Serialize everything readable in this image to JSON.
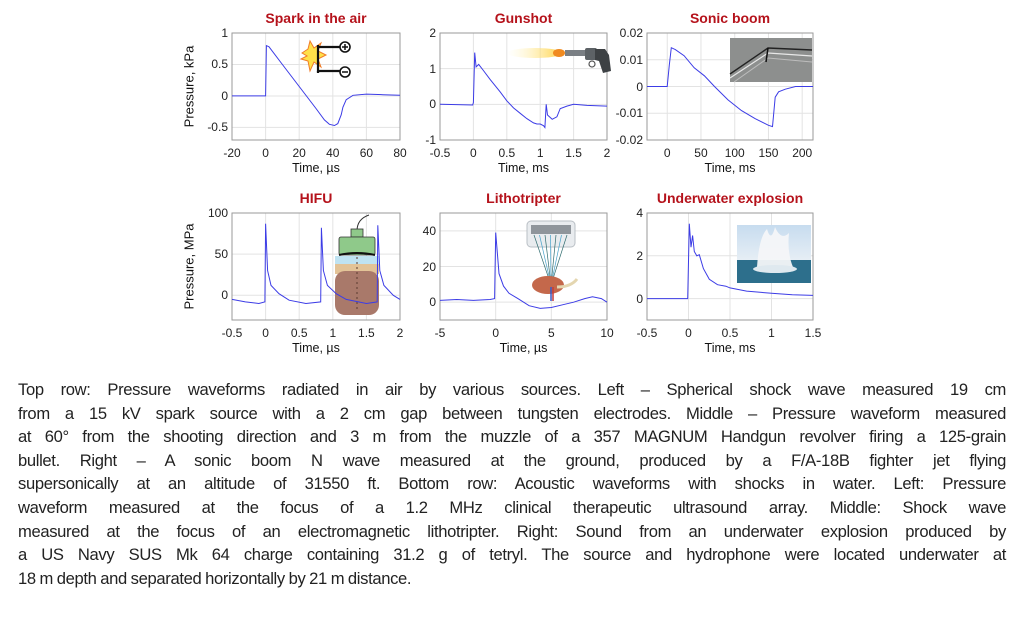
{
  "colors": {
    "title": "#b5121b",
    "trace": "#3c3ce6",
    "grid": "#e3e3e3",
    "axis": "#9a9a9a"
  },
  "chart_data": [
    {
      "type": "line",
      "title": "Spark in the air",
      "xlabel": "Time, µs",
      "ylabel": "Pressure, kPa",
      "xlim": [
        -20,
        80
      ],
      "ylim": [
        -0.7,
        1
      ],
      "xticks": [
        -20,
        0,
        20,
        40,
        60,
        80
      ],
      "yticks": [
        -0.5,
        0,
        0.5,
        1
      ],
      "xticklabels": [
        "-20",
        "0",
        "20",
        "40",
        "60",
        "80"
      ],
      "yticklabels": [
        "-0.5",
        "0",
        "0.5",
        "1"
      ],
      "grid": true,
      "inset": "spark-electrodes-icon",
      "series": [
        {
          "name": "pressure",
          "points": [
            [
              -20,
              0
            ],
            [
              0,
              0
            ],
            [
              0.5,
              0.8
            ],
            [
              2,
              0.78
            ],
            [
              10,
              0.5
            ],
            [
              20,
              0.15
            ],
            [
              30,
              -0.2
            ],
            [
              35,
              -0.38
            ],
            [
              38,
              -0.45
            ],
            [
              41,
              -0.47
            ],
            [
              43,
              -0.44
            ],
            [
              45,
              -0.3
            ],
            [
              46,
              -0.18
            ],
            [
              48,
              -0.06
            ],
            [
              52,
              0.01
            ],
            [
              60,
              0.03
            ],
            [
              70,
              0.02
            ],
            [
              80,
              0.01
            ]
          ]
        }
      ]
    },
    {
      "type": "line",
      "title": "Gunshot",
      "xlabel": "Time, ms",
      "ylabel": "",
      "xlim": [
        -0.5,
        2
      ],
      "ylim": [
        -1,
        2
      ],
      "xticks": [
        -0.5,
        0,
        0.5,
        1,
        1.5,
        2
      ],
      "yticks": [
        -1,
        0,
        1,
        2
      ],
      "xticklabels": [
        "-0.5",
        "0",
        "0.5",
        "1",
        "1.5",
        "2"
      ],
      "yticklabels": [
        "-1",
        "0",
        "1",
        "2"
      ],
      "grid": true,
      "inset": "revolver-icon",
      "series": [
        {
          "name": "pressure",
          "points": [
            [
              -0.5,
              0
            ],
            [
              -0.01,
              -0.02
            ],
            [
              0,
              0.05
            ],
            [
              0.02,
              1.45
            ],
            [
              0.04,
              1.05
            ],
            [
              0.08,
              1.12
            ],
            [
              0.15,
              0.95
            ],
            [
              0.25,
              0.7
            ],
            [
              0.4,
              0.35
            ],
            [
              0.5,
              0.1
            ],
            [
              0.6,
              -0.1
            ],
            [
              0.7,
              -0.25
            ],
            [
              0.8,
              -0.4
            ],
            [
              0.9,
              -0.52
            ],
            [
              0.95,
              -0.55
            ],
            [
              1.0,
              -0.55
            ],
            [
              1.05,
              -0.6
            ],
            [
              1.07,
              -0.65
            ],
            [
              1.09,
              0.0
            ],
            [
              1.11,
              -0.3
            ],
            [
              1.18,
              -0.42
            ],
            [
              1.25,
              -0.35
            ],
            [
              1.3,
              -0.12
            ],
            [
              1.4,
              -0.05
            ],
            [
              1.5,
              0.0
            ],
            [
              1.7,
              -0.03
            ],
            [
              2,
              -0.05
            ]
          ]
        }
      ]
    },
    {
      "type": "line",
      "title": "Sonic boom",
      "xlabel": "Time, ms",
      "ylabel": "",
      "xlim": [
        -30,
        216
      ],
      "ylim": [
        -0.02,
        0.02
      ],
      "xticks": [
        0,
        50,
        100,
        150,
        200
      ],
      "yticks": [
        -0.02,
        -0.01,
        0,
        0.01,
        0.02
      ],
      "xticklabels": [
        "0",
        "50",
        "100",
        "150",
        "200"
      ],
      "yticklabels": [
        "-0.02",
        "-0.01",
        "0",
        "0.01",
        "0.02"
      ],
      "grid": true,
      "inset": "schlieren-photo",
      "series": [
        {
          "name": "pressure",
          "points": [
            [
              -30,
              0
            ],
            [
              0,
              0
            ],
            [
              3,
              0.008
            ],
            [
              6,
              0.0145
            ],
            [
              12,
              0.0138
            ],
            [
              25,
              0.0115
            ],
            [
              40,
              0.007
            ],
            [
              55,
              0.004
            ],
            [
              70,
              0
            ],
            [
              90,
              -0.005
            ],
            [
              110,
              -0.009
            ],
            [
              130,
              -0.012
            ],
            [
              150,
              -0.0145
            ],
            [
              156,
              -0.015
            ],
            [
              160,
              -0.004
            ],
            [
              165,
              -0.002
            ],
            [
              175,
              -0.001
            ],
            [
              190,
              0
            ],
            [
              216,
              0
            ]
          ]
        }
      ]
    },
    {
      "type": "line",
      "title": "HIFU",
      "xlabel": "Time, µs",
      "ylabel": "Pressure, MPa",
      "xlim": [
        -0.5,
        2
      ],
      "ylim": [
        -30,
        100
      ],
      "xticks": [
        -0.5,
        0,
        0.5,
        1,
        1.5,
        2
      ],
      "yticks": [
        0,
        50,
        100
      ],
      "xticklabels": [
        "-0.5",
        "0",
        "0.5",
        "1",
        "1.5",
        "2"
      ],
      "yticklabels": [
        "0",
        "50",
        "100"
      ],
      "grid": true,
      "inset": "ultrasound-transducer-icon",
      "series": [
        {
          "name": "pressure",
          "points": [
            [
              -0.5,
              -5
            ],
            [
              -0.3,
              -8
            ],
            [
              -0.1,
              -10
            ],
            [
              -0.01,
              -8
            ],
            [
              0,
              87
            ],
            [
              0.03,
              30
            ],
            [
              0.08,
              12
            ],
            [
              0.2,
              2
            ],
            [
              0.35,
              -6
            ],
            [
              0.6,
              -10
            ],
            [
              0.82,
              -8
            ],
            [
              0.83,
              82
            ],
            [
              0.86,
              30
            ],
            [
              0.92,
              12
            ],
            [
              1.05,
              2
            ],
            [
              1.2,
              -5
            ],
            [
              1.5,
              -10
            ],
            [
              1.66,
              -8
            ],
            [
              1.67,
              85
            ],
            [
              1.7,
              30
            ],
            [
              1.76,
              12
            ],
            [
              1.9,
              0
            ],
            [
              2,
              -5
            ]
          ]
        }
      ]
    },
    {
      "type": "line",
      "title": "Lithotripter",
      "xlabel": "Time, µs",
      "ylabel": "",
      "xlim": [
        -5,
        10
      ],
      "ylim": [
        -10,
        50
      ],
      "xticks": [
        -5,
        0,
        5,
        10
      ],
      "yticks": [
        0,
        20,
        40
      ],
      "xticklabels": [
        "-5",
        "0",
        "5",
        "10"
      ],
      "yticklabels": [
        "0",
        "20",
        "40"
      ],
      "grid": true,
      "inset": "lithotripter-kidney-icon",
      "series": [
        {
          "name": "pressure",
          "points": [
            [
              -5,
              1
            ],
            [
              -3.5,
              1.5
            ],
            [
              -2,
              1
            ],
            [
              -0.5,
              1.5
            ],
            [
              -0.1,
              2
            ],
            [
              0,
              39
            ],
            [
              0.3,
              16
            ],
            [
              0.7,
              9
            ],
            [
              1.2,
              5
            ],
            [
              2,
              2
            ],
            [
              3,
              -2
            ],
            [
              4,
              -3.5
            ],
            [
              5,
              -3
            ],
            [
              6,
              -1.5
            ],
            [
              7,
              0
            ],
            [
              8,
              2
            ],
            [
              8.7,
              3
            ],
            [
              9.5,
              2
            ],
            [
              10,
              0
            ]
          ]
        }
      ]
    },
    {
      "type": "line",
      "title": "Underwater explosion",
      "xlabel": "Time, ms",
      "ylabel": "",
      "xlim": [
        -0.5,
        1.5
      ],
      "ylim": [
        -1,
        4
      ],
      "xticks": [
        -0.5,
        0,
        0.5,
        1,
        1.5
      ],
      "yticks": [
        0,
        2,
        4
      ],
      "xticklabels": [
        "-0.5",
        "0",
        "0.5",
        "1",
        "1.5"
      ],
      "yticklabels": [
        "0",
        "2",
        "4"
      ],
      "grid": true,
      "inset": "explosion-photo",
      "series": [
        {
          "name": "pressure",
          "points": [
            [
              -0.5,
              0
            ],
            [
              -0.01,
              0
            ],
            [
              0.01,
              3.5
            ],
            [
              0.03,
              2.4
            ],
            [
              0.05,
              2.95
            ],
            [
              0.07,
              2.2
            ],
            [
              0.1,
              2.0
            ],
            [
              0.13,
              2.05
            ],
            [
              0.18,
              1.4
            ],
            [
              0.25,
              0.9
            ],
            [
              0.35,
              0.65
            ],
            [
              0.45,
              0.58
            ],
            [
              0.5,
              0.5
            ],
            [
              0.7,
              0.35
            ],
            [
              1.0,
              0.25
            ],
            [
              1.25,
              0.18
            ],
            [
              1.5,
              0.15
            ]
          ]
        }
      ]
    }
  ],
  "caption": {
    "lines": [
      "Top row: Pressure waveforms radiated in air by various sources. Left – Spherical shock wave measured 19 cm",
      "from a 15 kV spark source with a 2 cm gap between tungsten electrodes. Middle – Pressure waveform measured",
      "at 60° from the shooting direction and 3 m from the muzzle of a 357 MAGNUM Handgun revolver firing a 125-grain",
      "bullet. Right – A sonic boom N wave measured at the ground, produced by a F/A-18B fighter jet flying",
      "supersonically at an altitude of 31550 ft. Bottom row: Acoustic waveforms with shocks in water. Left: Pressure",
      "waveform measured at the focus of a 1.2 MHz clinical therapeutic ultrasound array. Middle: Shock wave",
      "measured at the focus of an electromagnetic lithotripter. Right: Sound from an underwater explosion produced by",
      "a US Navy SUS Mk 64 charge containing 31.2 g of tetryl. The source and hydrophone were located underwater at",
      "18 m depth and separated horizontally by 21 m distance."
    ]
  }
}
